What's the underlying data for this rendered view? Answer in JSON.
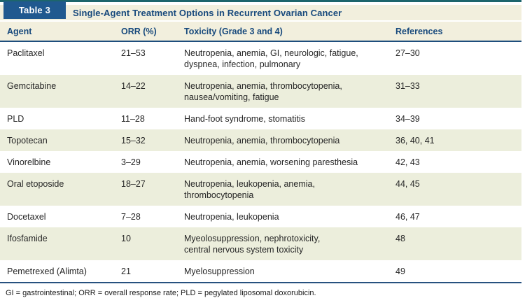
{
  "table": {
    "label": "Table 3",
    "title": "Single-Agent Treatment Options in Recurrent Ovarian Cancer",
    "columns": [
      "Agent",
      "ORR (%)",
      "Toxicity (Grade 3 and 4)",
      "References"
    ],
    "rows": [
      {
        "agent": "Paclitaxel",
        "orr": "21–53",
        "toxicity": "Neutropenia, anemia, GI, neurologic, fatigue,\ndyspnea, infection, pulmonary",
        "references": "27–30"
      },
      {
        "agent": "Gemcitabine",
        "orr": "14–22",
        "toxicity": "Neutropenia, anemia, thrombocytopenia,\nnausea/vomiting, fatigue",
        "references": "31–33"
      },
      {
        "agent": "PLD",
        "orr": "11–28",
        "toxicity": "Hand-foot syndrome, stomatitis",
        "references": "34–39"
      },
      {
        "agent": "Topotecan",
        "orr": "15–32",
        "toxicity": "Neutropenia, anemia, thrombocytopenia",
        "references": "36, 40, 41"
      },
      {
        "agent": "Vinorelbine",
        "orr": "3–29",
        "toxicity": "Neutropenia, anemia, worsening paresthesia",
        "references": "42, 43"
      },
      {
        "agent": "Oral etoposide",
        "orr": "18–27",
        "toxicity": "Neutropenia, leukopenia, anemia,\nthrombocytopenia",
        "references": "44, 45"
      },
      {
        "agent": "Docetaxel",
        "orr": "7–28",
        "toxicity": "Neutropenia, leukopenia",
        "references": "46, 47"
      },
      {
        "agent": "Ifosfamide",
        "orr": "10",
        "toxicity": "Myeolosuppression, nephrotoxicity,\ncentral nervous system toxicity",
        "references": "48"
      },
      {
        "agent": "Pemetrexed (Alimta)",
        "orr": "21",
        "toxicity": "Myelosuppression",
        "references": "49"
      }
    ],
    "footnote": "GI = gastrointestinal; ORR = overall response rate; PLD = pegylated liposomal doxorubicin."
  },
  "colors": {
    "top_bar_teal": "#1d656c",
    "label_box_navy": "#20598f",
    "heading_navy": "#17497c",
    "rule_navy": "#1e4e7d",
    "band_cream": "#f2efdd",
    "row_tint": "#eceedc",
    "body_text": "#262626"
  }
}
